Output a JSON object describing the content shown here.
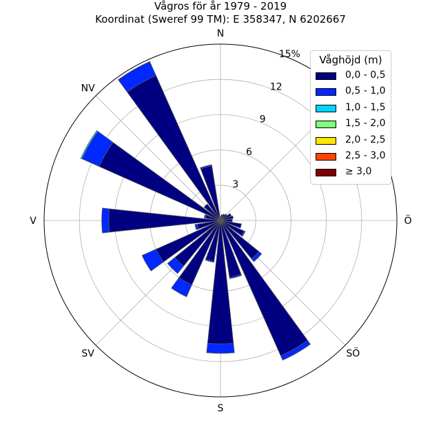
{
  "chart_data": {
    "type": "polar-stacked-bar",
    "title": "Vågros för år 1979 - 2019",
    "subtitle": "Koordinat (Sweref 99 TM): E 358347, N 6202667",
    "legend_title": "Våghöjd (m)",
    "legend_placement": "top-right",
    "grid": true,
    "r_ticks": [
      "3",
      "6",
      "9",
      "12",
      "15%"
    ],
    "r_tick_values": [
      3,
      6,
      9,
      12,
      15
    ],
    "rlim": [
      0,
      15
    ],
    "direction_labels": [
      "N",
      "Ö",
      "SÖ",
      "S",
      "SV",
      "V",
      "NV"
    ],
    "direction_angles": [
      0,
      90,
      135,
      180,
      225,
      270,
      315
    ],
    "sector_width_deg": 15,
    "bins": [
      {
        "label": "0,0 - 0,5",
        "color": "#000080"
      },
      {
        "label": "0,5 - 1,0",
        "color": "#0028ff"
      },
      {
        "label": "1,0 - 1,5",
        "color": "#00d4ff"
      },
      {
        "label": "1,5 - 2,0",
        "color": "#7dff7a"
      },
      {
        "label": "2,0 - 2,5",
        "color": "#ffe600"
      },
      {
        "label": "2,5 - 3,0",
        "color": "#ff4600"
      },
      {
        "label": "≥ 3,0",
        "color": "#800000"
      }
    ],
    "sectors": [
      {
        "direction_deg": 0,
        "values": [
          0.3,
          0,
          0,
          0,
          0,
          0,
          0
        ]
      },
      {
        "direction_deg": 15,
        "values": [
          0.5,
          0,
          0,
          0,
          0,
          0,
          0
        ]
      },
      {
        "direction_deg": 30,
        "values": [
          0.6,
          0,
          0,
          0,
          0,
          0,
          0
        ]
      },
      {
        "direction_deg": 45,
        "values": [
          0.7,
          0,
          0,
          0,
          0,
          0,
          0
        ]
      },
      {
        "direction_deg": 60,
        "values": [
          1.0,
          0,
          0,
          0,
          0,
          0,
          0
        ]
      },
      {
        "direction_deg": 75,
        "values": [
          1.1,
          0,
          0,
          0,
          0,
          0,
          0
        ]
      },
      {
        "direction_deg": 90,
        "values": [
          1.0,
          0,
          0,
          0,
          0,
          0,
          0
        ]
      },
      {
        "direction_deg": 105,
        "values": [
          1.8,
          0,
          0,
          0,
          0,
          0,
          0
        ]
      },
      {
        "direction_deg": 120,
        "values": [
          2.2,
          0.1,
          0,
          0,
          0,
          0,
          0
        ]
      },
      {
        "direction_deg": 135,
        "values": [
          4.2,
          0.3,
          0,
          0,
          0,
          0,
          0
        ]
      },
      {
        "direction_deg": 150,
        "values": [
          12.6,
          0.4,
          0,
          0,
          0,
          0,
          0
        ]
      },
      {
        "direction_deg": 165,
        "values": [
          4.9,
          0.1,
          0,
          0,
          0,
          0,
          0
        ]
      },
      {
        "direction_deg": 180,
        "values": [
          10.5,
          0.8,
          0,
          0,
          0,
          0,
          0
        ]
      },
      {
        "direction_deg": 195,
        "values": [
          3.5,
          0.1,
          0,
          0,
          0,
          0,
          0
        ]
      },
      {
        "direction_deg": 210,
        "values": [
          6.0,
          1.1,
          0,
          0,
          0,
          0,
          0
        ]
      },
      {
        "direction_deg": 225,
        "values": [
          5.0,
          0.8,
          0,
          0,
          0,
          0,
          0
        ]
      },
      {
        "direction_deg": 240,
        "values": [
          6.0,
          1.3,
          0,
          0,
          0,
          0,
          0
        ]
      },
      {
        "direction_deg": 255,
        "values": [
          2.0,
          0.2,
          0,
          0,
          0,
          0,
          0
        ]
      },
      {
        "direction_deg": 270,
        "values": [
          9.5,
          0.6,
          0,
          0,
          0,
          0,
          0
        ]
      },
      {
        "direction_deg": 285,
        "values": [
          1.3,
          0.1,
          0,
          0,
          0,
          0,
          0
        ]
      },
      {
        "direction_deg": 300,
        "values": [
          11.3,
          1.6,
          0.1,
          0,
          0,
          0,
          0
        ]
      },
      {
        "direction_deg": 315,
        "values": [
          1.8,
          0,
          0,
          0,
          0,
          0,
          0
        ]
      },
      {
        "direction_deg": 330,
        "values": [
          13.5,
          1.3,
          0,
          0,
          0,
          0,
          0
        ]
      },
      {
        "direction_deg": 345,
        "values": [
          4.7,
          0.1,
          0,
          0,
          0,
          0,
          0
        ]
      }
    ]
  }
}
